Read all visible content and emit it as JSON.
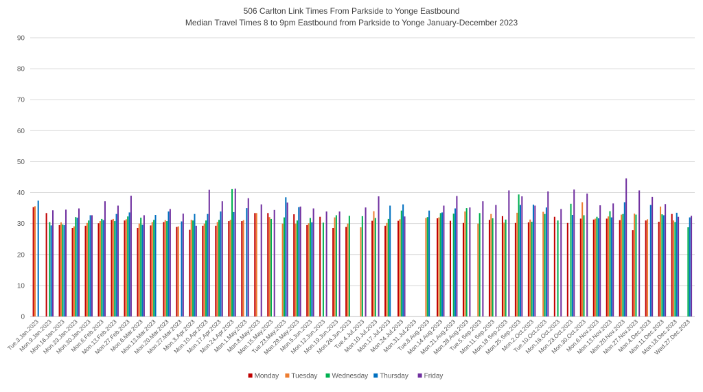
{
  "chart_data": {
    "type": "bar",
    "title": "506 Carlton Link Times From Parkside to Yonge Eastbound",
    "subtitle": "Median Travel Times 8 to 9pm Eastbound from Parkside to Yonge January-December 2023",
    "xlabel": "",
    "ylabel": "",
    "ylim": [
      0,
      90
    ],
    "yticks": [
      0,
      10,
      20,
      30,
      40,
      50,
      60,
      70,
      80,
      90
    ],
    "grid": true,
    "legend_position": "bottom",
    "categories": [
      "Tue.3.Jan.2023",
      "Mon.9.Jan.2023",
      "Mon.16.Jan.2023",
      "Mon.23.Jan.2023",
      "Mon.30.Jan.2023",
      "Mon.6.Feb.2023",
      "Mon.13.Feb.2023",
      "Mon.27.Feb.2023",
      "Mon.6.Mar.2023",
      "Mon.13.Mar.2023",
      "Mon.20.Mar.2023",
      "Mon.27.Mar.2023",
      "Mon.3.Apr.2023",
      "Mon.10.Apr.2023",
      "Mon.17.Apr.2023",
      "Mon.24.Apr.2023",
      "Mon.1.May.2023",
      "Mon.8.May.2023",
      "Mon.15.May.2023",
      "Tue.23.May.2023",
      "Mon.29.May.2023",
      "Mon.5.Jun.2023",
      "Mon.12.Jun.2023",
      "Mon.19.Jun.2023",
      "Mon.26.Jun.2023",
      "Tue.4.Jul.2023",
      "Mon.10.Jul.2023",
      "Mon.17.Jul.2023",
      "Mon.24.Jul.2023",
      "Mon.31.Jul.2023",
      "Tue.8.Aug.2023",
      "Mon.14.Aug.2023",
      "Mon.21.Aug.2023",
      "Mon.28.Aug.2023",
      "Tue.5.Sep.2023",
      "Mon.11.Sep.2023",
      "Mon.18.Sep.2023",
      "Mon.25.Sep.2023",
      "Mon.2.Oct.2023",
      "Tue.10.Oct.2023",
      "Mon.16.Oct.2023",
      "Mon.23.Oct.2023",
      "Mon.30.Oct.2023",
      "Mon.6.Nov.2023",
      "Mon.13.Nov.2023",
      "Mon.20.Nov.2023",
      "Mon.27.Nov.2023",
      "Mon.4.Dec.2023",
      "Mon.11.Dec.2023",
      "Mon.18.Dec.2023",
      "Wed.27.Dec.2023"
    ],
    "series": [
      {
        "name": "Monday",
        "color": "#c00000",
        "values": [
          35.3,
          33.4,
          29.5,
          28.6,
          29.3,
          30.1,
          31.2,
          31.0,
          28.6,
          29.4,
          30.5,
          28.9,
          28.0,
          29.3,
          29.3,
          30.8,
          30.8,
          33.4,
          33.4,
          null,
          33.0,
          29.5,
          32.2,
          28.6,
          28.9,
          null,
          30.9,
          29.3,
          30.9,
          null,
          null,
          31.7,
          30.9,
          30.2,
          null,
          31.2,
          32.4,
          30.2,
          30.4,
          null,
          32.2,
          30.2,
          31.6,
          31.3,
          31.6,
          31.1,
          27.9,
          31.0,
          30.6,
          33.1,
          null
        ]
      },
      {
        "name": "Tuesday",
        "color": "#ed7d31",
        "values": [
          35.6,
          null,
          30.4,
          29.1,
          30.2,
          30.8,
          31.5,
          31.4,
          30.0,
          30.5,
          31.1,
          29.1,
          31.2,
          30.0,
          30.5,
          31.2,
          31.1,
          33.4,
          32.1,
          30.0,
          30.0,
          30.1,
          null,
          32.0,
          30.0,
          28.8,
          34.0,
          30.2,
          31.4,
          null,
          31.8,
          32.0,
          null,
          33.9,
          30.0,
          33.1,
          30.3,
          33.5,
          31.3,
          33.8,
          null,
          null,
          36.9,
          31.6,
          32.3,
          32.9,
          33.2,
          31.4,
          35.5,
          31.0,
          null
        ]
      },
      {
        "name": "Wednesday",
        "color": "#00b050",
        "values": [
          null,
          30.5,
          29.7,
          32.1,
          31.0,
          31.5,
          30.8,
          32.3,
          31.9,
          31.2,
          30.8,
          null,
          31.0,
          31.0,
          31.2,
          41.2,
          null,
          null,
          31.5,
          32.0,
          31.0,
          31.8,
          30.3,
          32.7,
          32.5,
          32.4,
          31.8,
          31.5,
          34.2,
          null,
          32.1,
          33.4,
          33.2,
          35.0,
          33.4,
          31.7,
          31.3,
          39.4,
          30.6,
          33.1,
          31.0,
          36.4,
          32.7,
          32.2,
          34.0,
          33.1,
          32.9,
          null,
          33.0,
          30.5,
          28.8
        ]
      },
      {
        "name": "Thursday",
        "color": "#0070c0",
        "values": [
          37.4,
          29.4,
          29.5,
          31.9,
          32.7,
          31.1,
          33.1,
          33.6,
          29.6,
          32.8,
          33.9,
          30.7,
          33.1,
          33.1,
          33.9,
          33.7,
          35.0,
          null,
          null,
          38.5,
          35.3,
          30.4,
          null,
          null,
          null,
          null,
          null,
          35.8,
          36.2,
          null,
          34.2,
          33.6,
          34.9,
          null,
          null,
          null,
          null,
          36.0,
          36.1,
          35.2,
          null,
          32.8,
          null,
          31.7,
          32.0,
          36.9,
          null,
          36.0,
          32.7,
          33.5,
          32.0
        ]
      },
      {
        "name": "Friday",
        "color": "#7030a0",
        "values": [
          null,
          34.3,
          34.5,
          34.9,
          32.7,
          37.2,
          35.8,
          39.0,
          32.7,
          null,
          34.7,
          33.2,
          29.3,
          40.9,
          37.2,
          41.3,
          38.2,
          36.2,
          34.4,
          36.8,
          35.5,
          34.9,
          33.9,
          33.9,
          null,
          35.2,
          38.8,
          null,
          32.3,
          null,
          null,
          35.8,
          38.9,
          35.2,
          37.2,
          36.0,
          40.7,
          38.8,
          35.8,
          40.4,
          34.7,
          41.0,
          39.7,
          35.9,
          36.5,
          44.6,
          40.7,
          38.6,
          36.3,
          32.2,
          32.5
        ]
      }
    ]
  }
}
